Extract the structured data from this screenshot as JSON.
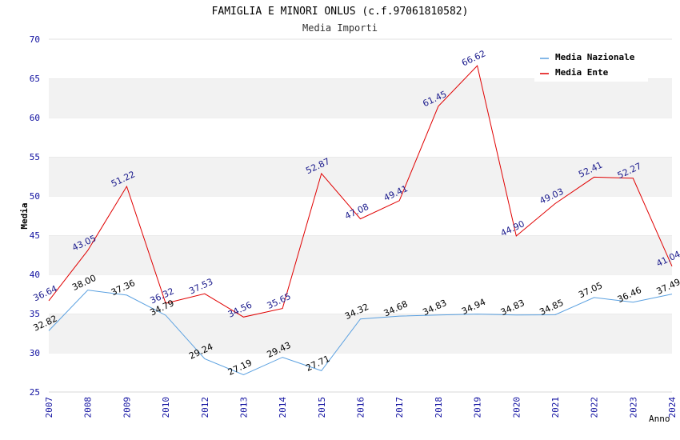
{
  "chart_data": {
    "type": "line",
    "title": "FAMIGLIA E MINORI ONLUS (c.f.97061810582)",
    "subtitle": "Media Importi",
    "ylabel": "Media",
    "xlabel": "Anno",
    "ylim": [
      25,
      70
    ],
    "yticks": [
      "25",
      "30",
      "35",
      "40",
      "45",
      "50",
      "55",
      "60",
      "65",
      "70"
    ],
    "categories": [
      "2007",
      "2008",
      "2009",
      "2010",
      "2012",
      "2013",
      "2014",
      "2015",
      "2016",
      "2017",
      "2018",
      "2019",
      "2020",
      "2021",
      "2022",
      "2023",
      "2024"
    ],
    "series": [
      {
        "name": "Media Nazionale",
        "color": "#5aa0e0",
        "label_color": "#000000",
        "values": [
          32.82,
          38.0,
          37.36,
          34.79,
          29.24,
          27.19,
          29.43,
          27.71,
          34.32,
          34.68,
          34.83,
          34.94,
          34.83,
          34.85,
          37.05,
          36.46,
          37.49
        ],
        "labels": [
          "32.82",
          "38.00",
          "37.36",
          "34.79",
          "29.24",
          "27.19",
          "29.43",
          "27.71",
          "34.32",
          "34.68",
          "34.83",
          "34.94",
          "34.83",
          "34.85",
          "37.05",
          "36.46",
          "37.49"
        ]
      },
      {
        "name": "Media Ente",
        "color": "#e00000",
        "label_color": "#1a1a8c",
        "values": [
          36.64,
          43.05,
          51.22,
          36.32,
          37.53,
          34.56,
          35.65,
          52.87,
          47.08,
          49.41,
          61.45,
          66.62,
          44.9,
          49.03,
          52.41,
          52.27,
          41.04
        ],
        "labels": [
          "36.64",
          "43.05",
          "51.22",
          "36.32",
          "37.53",
          "34.56",
          "35.65",
          "52.87",
          "47.08",
          "49.41",
          "61.45",
          "66.62",
          "44.90",
          "49.03",
          "52.41",
          "52.27",
          "41.04"
        ]
      }
    ],
    "grid": "alternating horizontal bands",
    "legend_position": "top-right"
  }
}
